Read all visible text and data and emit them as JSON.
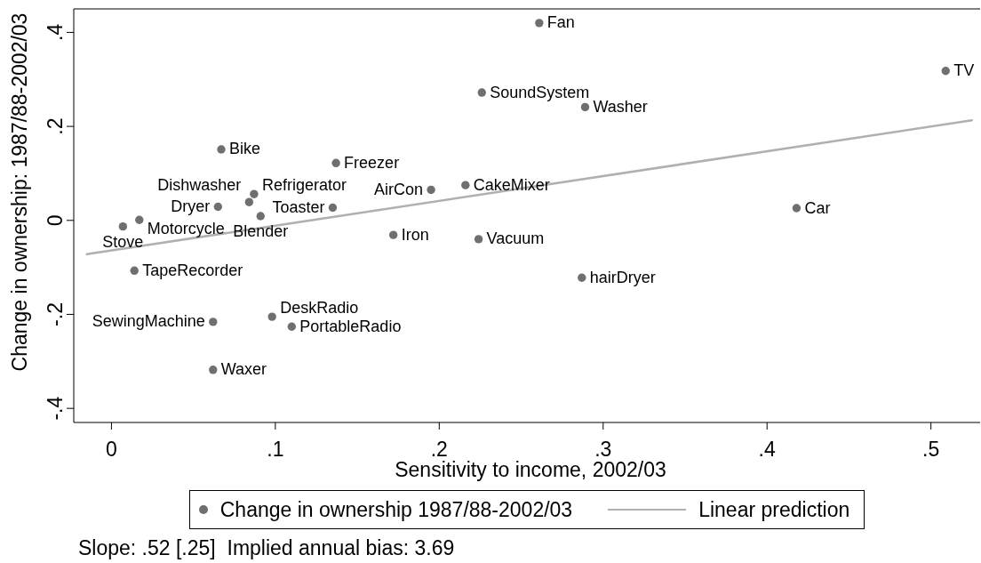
{
  "chart_data": {
    "type": "scatter",
    "xlabel": "Sensitivity to income, 2002/03",
    "ylabel": "Change in ownership: 1987/88-2002/03",
    "xlim": [
      -0.023,
      0.53
    ],
    "ylim": [
      -0.43,
      0.45
    ],
    "xticks": [
      0,
      {
        "value": 0.1,
        "label": ".1"
      },
      {
        "value": 0.2,
        "label": ".2"
      },
      {
        "value": 0.3,
        "label": ".3"
      },
      {
        "value": 0.4,
        "label": ".4"
      },
      {
        "value": 0.5,
        "label": ".5"
      }
    ],
    "yticks": [
      {
        "value": -0.4,
        "label": "-.4"
      },
      {
        "value": -0.2,
        "label": "-.2"
      },
      0,
      {
        "value": 0.2,
        "label": ".2"
      },
      {
        "value": 0.4,
        "label": ".4"
      }
    ],
    "legend": "bottom",
    "annotations": [
      "Slope: .52 [.25]  Implied annual bias: 3.69"
    ],
    "series": [
      {
        "name": "Change in ownership 1987/88-2002/03",
        "color": "#6f6f6f",
        "marker": "circle",
        "x": [
          0.261,
          0.509,
          0.226,
          0.289,
          0.067,
          0.137,
          0.216,
          0.195,
          0.087,
          0.084,
          0.065,
          0.135,
          0.418,
          0.091,
          0.017,
          0.007,
          0.172,
          0.224,
          0.014,
          0.287,
          0.098,
          0.062,
          0.11,
          0.062
        ],
        "values": [
          0.42,
          0.318,
          0.272,
          0.241,
          0.151,
          0.122,
          0.075,
          0.065,
          0.056,
          0.039,
          0.029,
          0.027,
          0.026,
          0.009,
          0.001,
          -0.013,
          -0.031,
          -0.04,
          -0.107,
          -0.122,
          -0.205,
          -0.216,
          -0.226,
          -0.318
        ],
        "value_labels": [
          "Fan",
          "TV",
          "SoundSystem",
          "Washer",
          "Bike",
          "Freezer",
          "CakeMixer",
          "AirCon",
          "Refrigerator",
          "Dishwasher",
          "Dryer",
          "Toaster",
          "Car",
          "Blender",
          "Motorcycle",
          "Stove",
          "Iron",
          "Vacuum",
          "TapeRecorder",
          "hairDryer",
          "DeskRadio",
          "SewingMachine",
          "PortableRadio",
          "Waxer"
        ]
      },
      {
        "name": "Linear prediction",
        "type": "line",
        "color": "#b0b0b0",
        "x": [
          -0.015,
          0.525
        ],
        "values": [
          -0.072,
          0.213
        ]
      }
    ]
  }
}
